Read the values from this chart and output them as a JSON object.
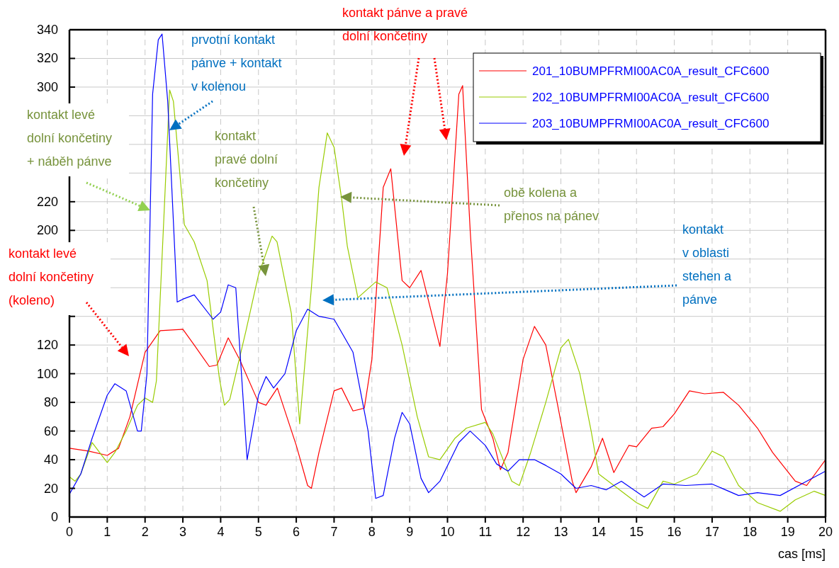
{
  "chart_data": {
    "type": "line",
    "xlabel": "cas [ms]",
    "xlim": [
      0,
      20
    ],
    "xticks": [
      0,
      1,
      2,
      3,
      4,
      5,
      6,
      7,
      8,
      9,
      10,
      11,
      12,
      13,
      14,
      15,
      16,
      17,
      18,
      19,
      20
    ],
    "ylim": [
      0,
      340
    ],
    "yticks": [
      0,
      20,
      40,
      60,
      80,
      100,
      120,
      {
        "value": 140,
        "label": null
      },
      {
        "value": 160,
        "label": null
      },
      {
        "value": 180,
        "label": null
      },
      200,
      220,
      {
        "value": 240,
        "label": null
      },
      {
        "value": 260,
        "label": null
      },
      {
        "value": 280,
        "label": null
      },
      300,
      320,
      340
    ],
    "grid": true,
    "legend": "top right",
    "line_style": "solid",
    "marker": "none",
    "series": [
      {
        "name": "201_10BUMPFRMI00AC0A_result_CFC600",
        "color": "#ff0000",
        "x": [
          0,
          0.5,
          1,
          1.3,
          1.6,
          2,
          2.4,
          3,
          3.3,
          3.7,
          3.9,
          4.2,
          4.5,
          5,
          5.2,
          5.5,
          6,
          6.3,
          6.4,
          6.6,
          7,
          7.2,
          7.5,
          7.8,
          8,
          8.3,
          8.5,
          8.8,
          9,
          9.3,
          9.6,
          9.8,
          10,
          10.3,
          10.4,
          10.6,
          10.9,
          11.2,
          11.4,
          11.6,
          12,
          12.3,
          12.6,
          12.9,
          13.3,
          13.4,
          13.8,
          14.1,
          14.4,
          14.8,
          15,
          15.4,
          15.7,
          16,
          16.4,
          16.8,
          17.3,
          17.7,
          18.2,
          18.6,
          19.2,
          19.5,
          20
        ],
        "values": [
          48,
          46,
          43,
          48,
          70,
          115,
          130,
          131,
          120,
          105,
          106,
          125,
          110,
          80,
          78,
          90,
          50,
          22,
          20,
          45,
          88,
          90,
          74,
          76,
          110,
          230,
          243,
          165,
          160,
          172,
          140,
          119,
          170,
          295,
          301,
          200,
          75,
          55,
          33,
          45,
          110,
          133,
          120,
          80,
          25,
          17,
          35,
          55,
          31,
          50,
          49,
          62,
          63,
          72,
          88,
          86,
          87,
          78,
          62,
          45,
          25,
          22,
          40
        ]
      },
      {
        "name": "202_10BUMPFRMI00AC0A_result_CFC600",
        "color": "#99cc00",
        "x": [
          0,
          0.15,
          0.3,
          0.6,
          1,
          1.2,
          1.5,
          1.8,
          2,
          2.2,
          2.3,
          2.5,
          2.65,
          2.75,
          3.04,
          3.3,
          3.64,
          3.97,
          4.1,
          4.24,
          4.67,
          5,
          5.36,
          5.49,
          5.87,
          6.09,
          6.4,
          6.6,
          6.82,
          7,
          7.2,
          7.35,
          7.63,
          8.1,
          8.4,
          8.8,
          9.2,
          9.5,
          9.8,
          10.2,
          10.5,
          11,
          11.2,
          11.7,
          11.9,
          12.2,
          12.6,
          13,
          13.2,
          13.5,
          13.8,
          14,
          14.5,
          15,
          15.3,
          15.7,
          16,
          16.6,
          17,
          17.3,
          17.7,
          18.2,
          18.8,
          19.2,
          19.7,
          20
        ],
        "values": [
          28,
          25,
          30,
          52,
          38,
          45,
          60,
          78,
          83,
          80,
          95,
          210,
          298,
          290,
          204,
          192,
          165,
          96,
          78,
          82,
          130,
          169,
          196,
          192,
          142,
          65,
          160,
          230,
          268,
          258,
          222,
          189,
          153,
          164,
          160,
          120,
          70,
          42,
          40,
          55,
          62,
          66,
          58,
          25,
          22,
          45,
          80,
          118,
          124,
          100,
          60,
          30,
          20,
          10,
          6,
          25,
          23,
          30,
          46,
          42,
          22,
          10,
          4,
          12,
          18,
          15
        ]
      },
      {
        "name": "203_10BUMPFRMI00AC0A_result_CFC600",
        "color": "#0000ff",
        "x": [
          0,
          0.3,
          0.6,
          1,
          1.2,
          1.5,
          1.8,
          1.9,
          2.05,
          2.15,
          2.2,
          2.35,
          2.45,
          2.6,
          2.85,
          3,
          3.3,
          3.8,
          4,
          4.2,
          4.4,
          4.6,
          4.7,
          5,
          5.2,
          5.4,
          5.7,
          6,
          6.3,
          6.6,
          7,
          7.5,
          7.9,
          8.1,
          8.3,
          8.6,
          8.8,
          9,
          9.3,
          9.5,
          9.8,
          10.3,
          10.6,
          11,
          11.3,
          11.6,
          11.9,
          12.3,
          12.6,
          13,
          13.4,
          13.8,
          14.2,
          14.6,
          15.2,
          15.7,
          16.3,
          17,
          17.7,
          18.2,
          18.8,
          19.5,
          20
        ],
        "values": [
          16,
          30,
          55,
          85,
          93,
          88,
          60,
          60,
          100,
          230,
          295,
          333,
          337,
          290,
          150,
          152,
          155,
          138,
          143,
          162,
          160,
          80,
          40,
          85,
          98,
          90,
          100,
          130,
          145,
          140,
          138,
          115,
          60,
          13,
          15,
          55,
          73,
          65,
          27,
          17,
          25,
          52,
          60,
          50,
          37,
          32,
          40,
          40,
          36,
          30,
          20,
          22,
          19,
          25,
          14,
          23,
          22,
          23,
          15,
          17,
          15,
          25,
          32
        ]
      }
    ],
    "annotations": [
      "prvotní kontakt\npánve + kontakt\nv kolenou",
      "kontakt levé\ndolní končetiny\n+ náběh pánve",
      "kontakt\npravé dolní\nkončetiny",
      "obě kolena a\npřenos na pánev",
      "kontakt pánve a pravé\ndolní končetiny",
      "kontakt\nv oblasti\nstehen a\npánve",
      "kontakt levé\ndolní končetiny\n(koleno)"
    ]
  }
}
